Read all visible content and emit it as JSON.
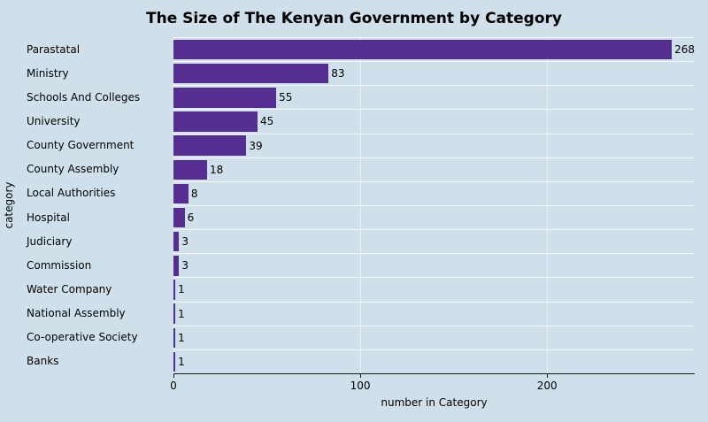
{
  "title": "The Size of The Kenyan Government by Category",
  "colors": {
    "background": "#cfe0ea",
    "bar": "#562e91",
    "grid": "#ffffff",
    "axis": "#1a1a1a"
  },
  "chart_data": {
    "type": "bar",
    "orientation": "horizontal",
    "title": "The Size of The Kenyan Government by Category",
    "xlabel": "number in Category",
    "ylabel": "category",
    "categories": [
      "Parastatal",
      "Ministry",
      "Schools And Colleges",
      "University",
      "County Government",
      "County Assembly",
      "Local Authorities",
      "Hospital",
      "Judiciary",
      "Commission",
      "Water Company",
      "National Assembly",
      "Co-operative Society",
      "Banks"
    ],
    "values": [
      268,
      83,
      55,
      45,
      39,
      18,
      8,
      6,
      3,
      3,
      1,
      1,
      1,
      1
    ],
    "xlim": [
      0,
      279
    ],
    "xticks": [
      0,
      100,
      200
    ],
    "grid": "horizontal-white",
    "legend": "none"
  }
}
